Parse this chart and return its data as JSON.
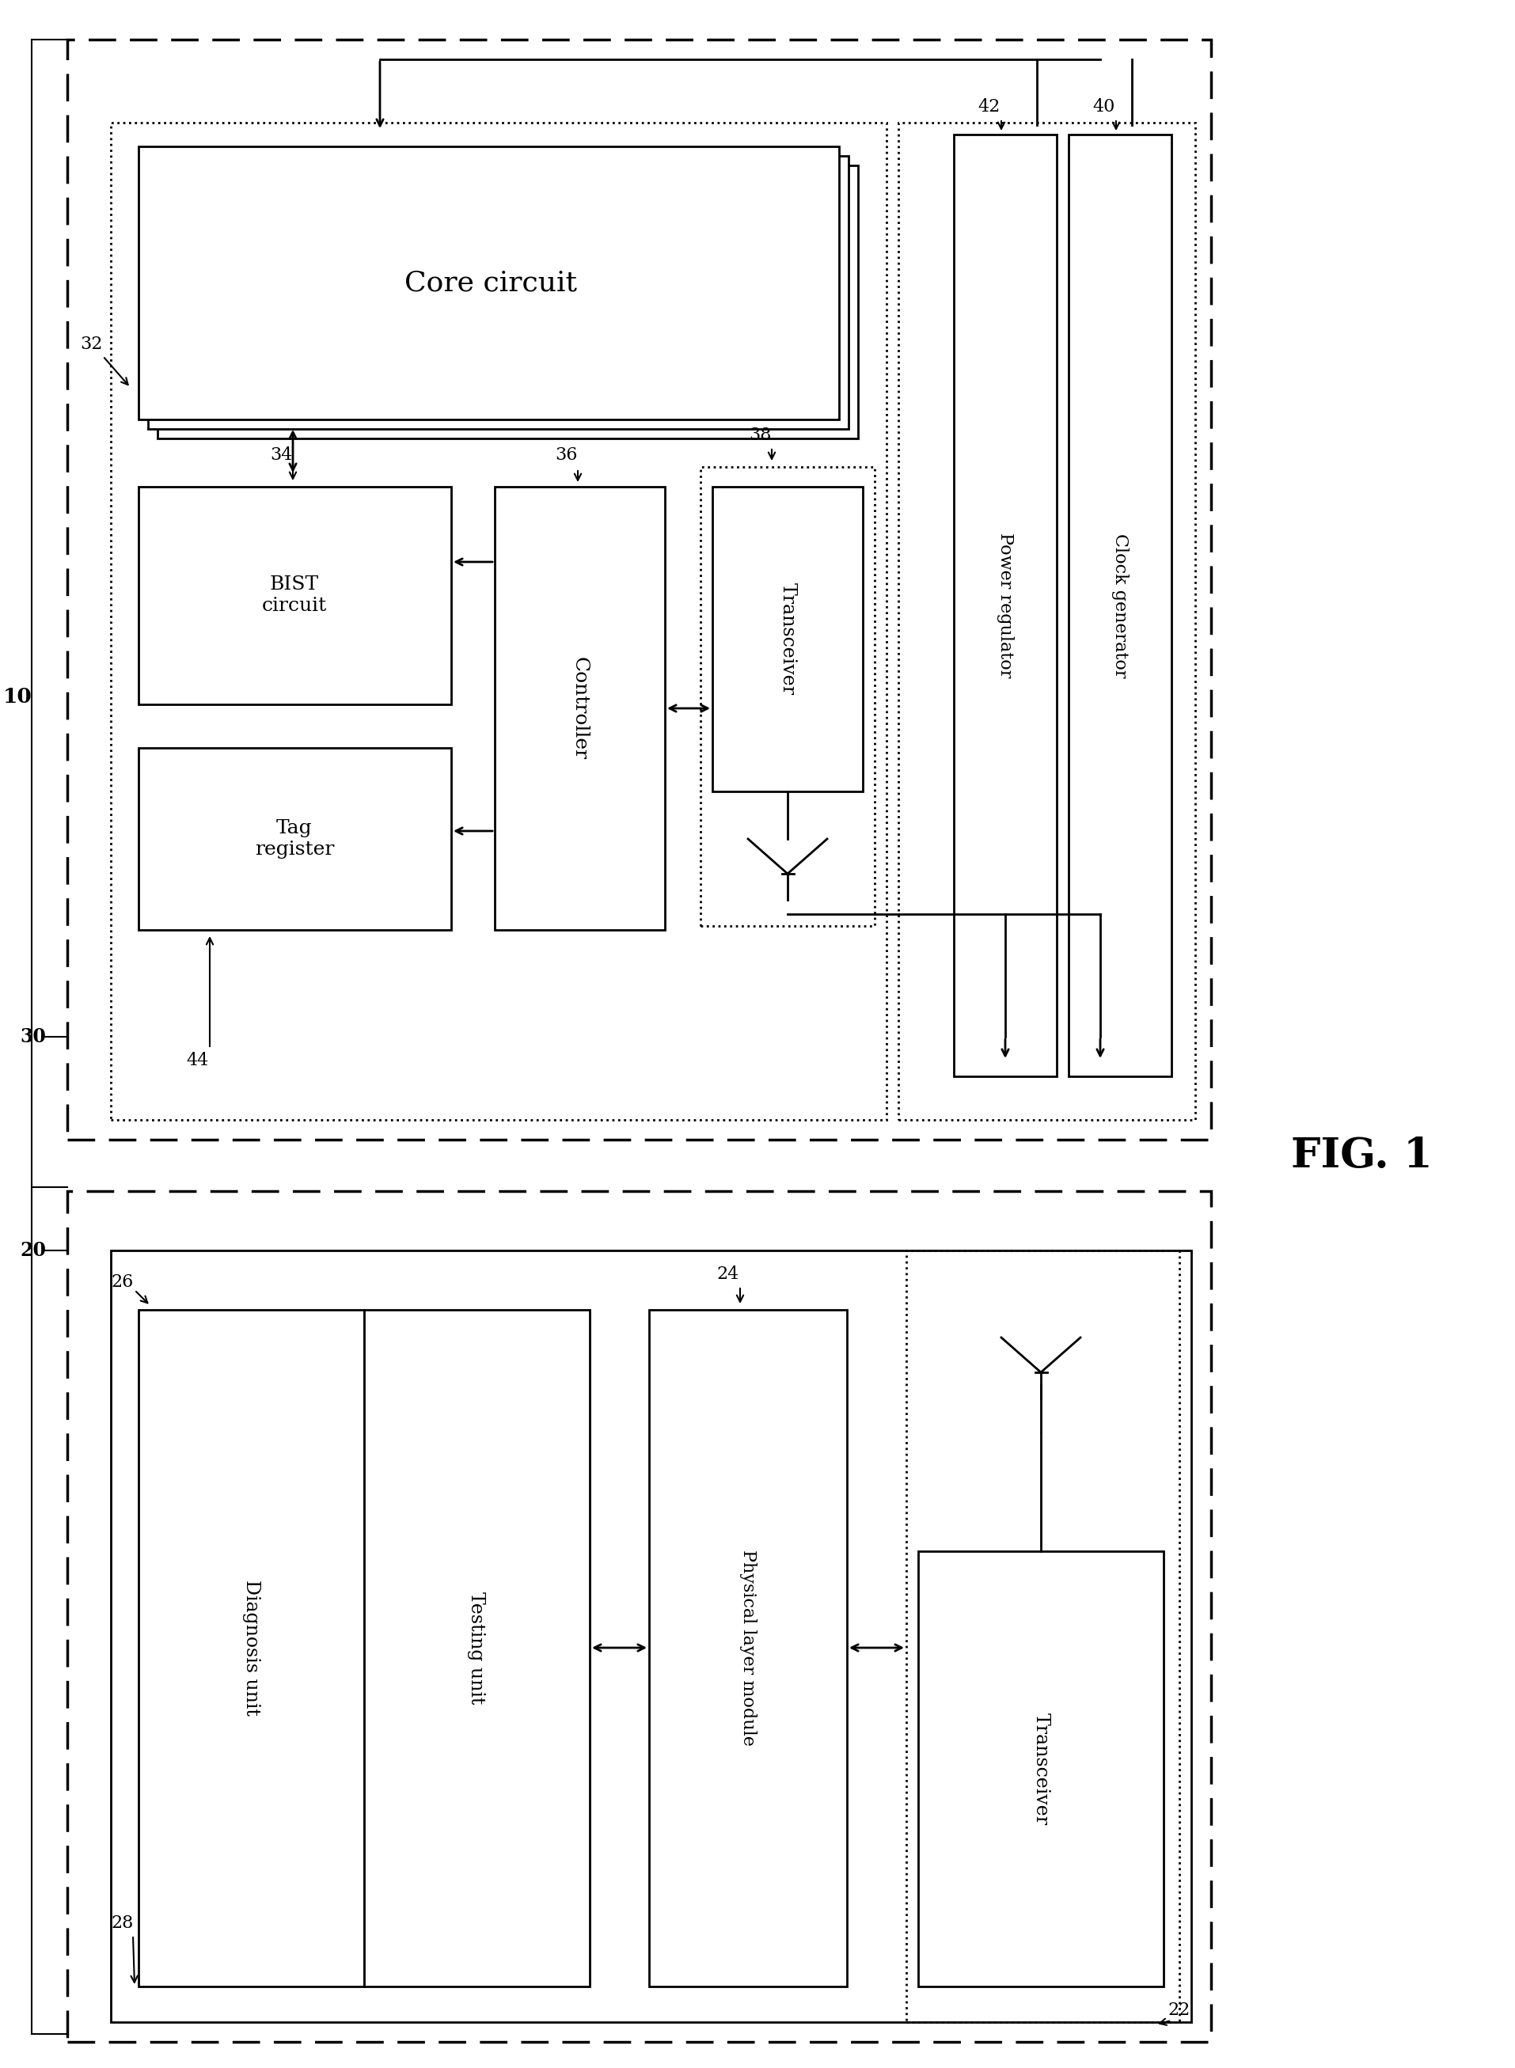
{
  "fig_width": 19.14,
  "fig_height": 26.13,
  "bg_color": "#ffffff",
  "lc": "#000000",
  "title": "FIG. 1",
  "labels": {
    "outer": "10",
    "top_block": "30",
    "core": "32",
    "bist": "34",
    "controller": "36",
    "transceiver_top": "38",
    "clock": "40",
    "power": "42",
    "tag": "44",
    "bot_block": "20",
    "phys": "24",
    "diag_test": "26",
    "diag_unit": "28",
    "transceiver_bot": "22"
  },
  "texts": {
    "core_circuit": "Core circuit",
    "bist_circuit": "BIST\ncircuit",
    "controller": "Controller",
    "transceiver": "Transceiver",
    "power_regulator": "Power regulator",
    "clock_generator": "Clock generator",
    "tag_register": "Tag\nregister",
    "testing_unit": "Testing unit",
    "diagnosis_unit": "Diagnosis unit",
    "physical_layer": "Physical layer module",
    "transceiver2": "Transceiver"
  }
}
